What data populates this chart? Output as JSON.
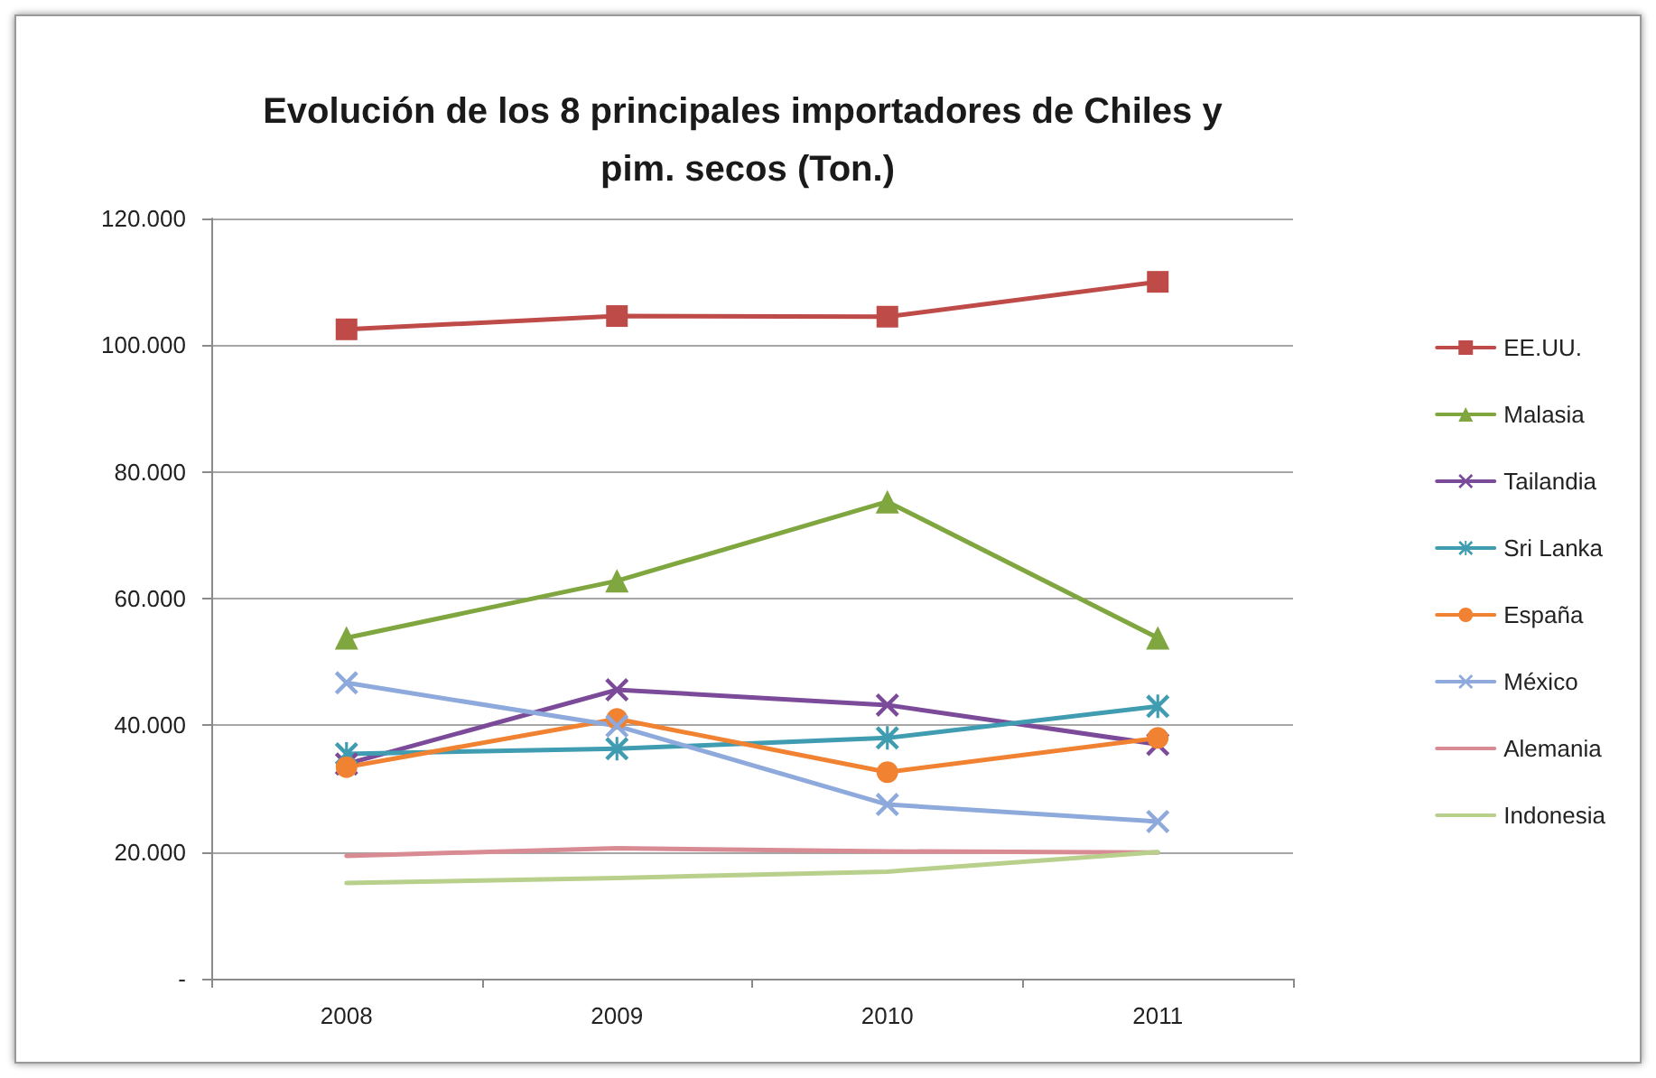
{
  "chart_data": {
    "type": "line",
    "title": "Evolución de los 8 principales importadores de Chiles y pim. secos (Ton.)",
    "categories": [
      "2008",
      "2009",
      "2010",
      "2011"
    ],
    "series": [
      {
        "name": "EE.UU.",
        "color": "#be4b48",
        "marker": "square",
        "values": [
          102500,
          104600,
          104500,
          110000
        ]
      },
      {
        "name": "Malasia",
        "color": "#7fa63f",
        "marker": "triangle",
        "values": [
          53800,
          62800,
          75300,
          53800
        ]
      },
      {
        "name": "Tailandia",
        "color": "#7b4b9a",
        "marker": "cross",
        "values": [
          33900,
          45600,
          43200,
          37000
        ]
      },
      {
        "name": "Sri Lanka",
        "color": "#3f9cb1",
        "marker": "star",
        "values": [
          35500,
          36300,
          38000,
          43000
        ]
      },
      {
        "name": "España",
        "color": "#f08232",
        "marker": "circle",
        "values": [
          33400,
          41000,
          32600,
          38000
        ]
      },
      {
        "name": "México",
        "color": "#8ea9db",
        "marker": "cross",
        "values": [
          46700,
          39900,
          27500,
          24800
        ]
      },
      {
        "name": "Alemania",
        "color": "#d98b93",
        "marker": "none",
        "values": [
          19400,
          20600,
          20100,
          19900
        ]
      },
      {
        "name": "Indonesia",
        "color": "#b8d08b",
        "marker": "none",
        "values": [
          15100,
          15900,
          16900,
          20000
        ]
      }
    ],
    "ylim": [
      0,
      120000
    ],
    "yticks": [
      {
        "value": 0,
        "label": "-"
      },
      {
        "value": 20000,
        "label": "20.000"
      },
      {
        "value": 40000,
        "label": "40.000"
      },
      {
        "value": 60000,
        "label": "60.000"
      },
      {
        "value": 80000,
        "label": "80.000"
      },
      {
        "value": 100000,
        "label": "100.000"
      },
      {
        "value": 120000,
        "label": "120.000"
      }
    ],
    "grid": "y",
    "legend": "right",
    "line_style": "solid"
  }
}
